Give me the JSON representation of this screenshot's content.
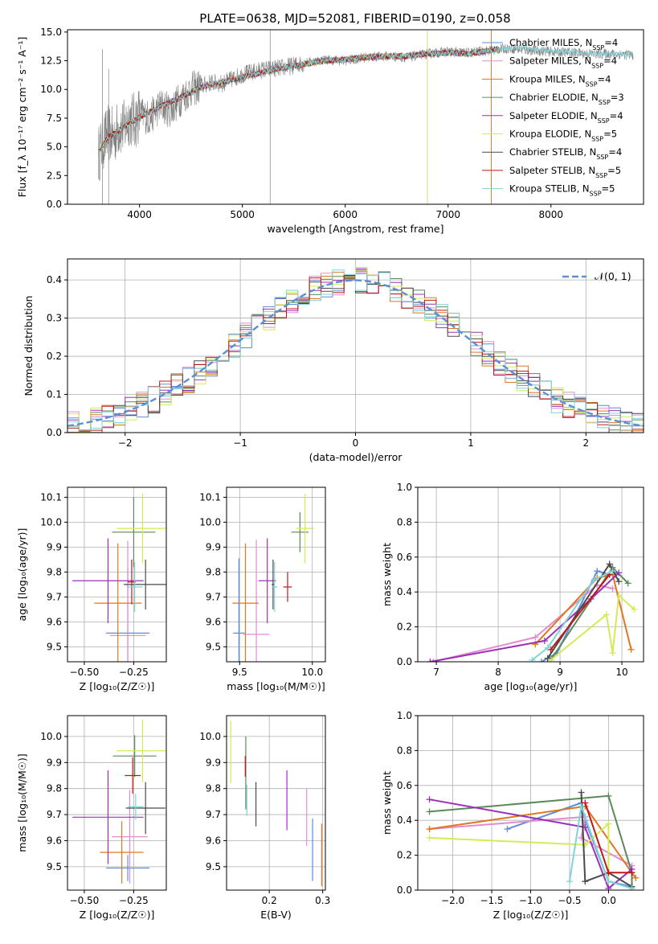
{
  "figure": {
    "title": "PLATE=0638, MJD=52081, FIBERID=0190, z=0.058"
  },
  "colors": {
    "Chabrier MILES": "#5b8fd6",
    "Salpeter MILES": "#e38bd0",
    "Kroupa MILES": "#e0761e",
    "Chabrier ELODIE": "#5a8a5a",
    "Salpeter ELODIE": "#9b30b8",
    "Kroupa ELODIE": "#d4ea58",
    "Chabrier STELIB": "#4a4a4a",
    "Salpeter STELIB": "#c01818",
    "Kroupa STELIB": "#7fd3da",
    "observed": "#808080",
    "normal": "#5b8fd6"
  },
  "chart_data": [
    {
      "id": "spectrum",
      "type": "line",
      "title": "PLATE=0638, MJD=52081, FIBERID=0190, z=0.058",
      "xlabel": "wavelength [Angstrom, rest frame]",
      "ylabel": "Flux [f_λ 10⁻¹⁷ erg cm⁻² s⁻¹ A⁻¹]",
      "xlim": [
        3300,
        8900
      ],
      "ylim": [
        0,
        15.2
      ],
      "xticks": [
        4000,
        5000,
        6000,
        7000,
        8000
      ],
      "yticks": [
        0.0,
        2.5,
        5.0,
        7.5,
        10.0,
        12.5,
        15.0
      ],
      "grid": false,
      "legend_position": "upper right",
      "legend": [
        {
          "name": "Chabrier MILES",
          "n": "4"
        },
        {
          "name": "Salpeter MILES",
          "n": "4"
        },
        {
          "name": "Kroupa MILES",
          "n": "4"
        },
        {
          "name": "Chabrier ELODIE",
          "n": "3"
        },
        {
          "name": "Salpeter ELODIE",
          "n": "4"
        },
        {
          "name": "Kroupa ELODIE",
          "n": "5"
        },
        {
          "name": "Chabrier STELIB",
          "n": "4"
        },
        {
          "name": "Salpeter STELIB",
          "n": "5"
        },
        {
          "name": "Kroupa STELIB",
          "n": "5"
        }
      ],
      "observed_series": {
        "x": [
          3600,
          3650,
          3700,
          3750,
          3800,
          3850,
          3900,
          3950,
          4000,
          4100,
          4200,
          4300,
          4400,
          4500,
          4600,
          4700,
          4800,
          4900,
          5000,
          5200,
          5400,
          5600,
          5800,
          6000,
          6200,
          6400,
          6600,
          6800,
          7000,
          7200,
          7400,
          7600,
          7800,
          8000,
          8200,
          8400,
          8600,
          8800
        ],
        "y": [
          4.3,
          5.5,
          6.2,
          5.8,
          6.8,
          6.6,
          7.6,
          7.2,
          7.9,
          7.5,
          8.6,
          8.2,
          9.2,
          10.0,
          10.3,
          10.6,
          10.5,
          10.9,
          11.3,
          11.7,
          11.9,
          12.3,
          12.6,
          12.5,
          12.8,
          12.9,
          12.8,
          13.1,
          13.3,
          13.2,
          13.4,
          13.6,
          13.4,
          13.3,
          13.2,
          13.1,
          13.1,
          13.0
        ]
      },
      "model_series": {
        "x": [
          3600,
          3700,
          3800,
          3900,
          4000,
          4200,
          4400,
          4600,
          4800,
          5000,
          5200,
          5400,
          5600,
          5800,
          6000,
          6200,
          6400,
          6600,
          6800,
          7000,
          7200,
          7400,
          7500
        ],
        "y": [
          4.5,
          5.9,
          6.4,
          7.0,
          7.6,
          8.5,
          9.3,
          10.2,
          10.6,
          11.1,
          11.5,
          11.9,
          12.2,
          12.5,
          12.6,
          12.8,
          12.9,
          12.9,
          13.1,
          13.2,
          13.1,
          13.4,
          13.5
        ]
      },
      "extended_model": {
        "name": "Kroupa STELIB",
        "x": [
          7500,
          7700,
          7900,
          8100,
          8300,
          8500,
          8700,
          8800
        ],
        "y": [
          13.5,
          13.7,
          13.4,
          13.3,
          13.2,
          13.1,
          13.1,
          13.0
        ]
      }
    },
    {
      "id": "residuals",
      "type": "line",
      "xlabel": "(data-model)/error",
      "ylabel": "Normed distribution",
      "xlim": [
        -2.5,
        2.5
      ],
      "ylim": [
        0,
        0.455
      ],
      "xticks": [
        -2,
        -1,
        0,
        1,
        2
      ],
      "yticks": [
        0.0,
        0.1,
        0.2,
        0.3,
        0.4
      ],
      "grid": true,
      "legend_position": "upper right",
      "legend": [
        {
          "name": "𝒩(0, 1)"
        }
      ],
      "normal_curve": {
        "mean": 0,
        "sigma": 1
      }
    },
    {
      "id": "age_vs_Z",
      "type": "scatter",
      "xlabel": "Z [log₁₀(Z/Z☉)]",
      "ylabel": "age  [log₁₀(age/yr)]",
      "xlim": [
        -0.585,
        -0.085
      ],
      "ylim": [
        9.44,
        10.14
      ],
      "xticks": [
        -0.5,
        -0.25
      ],
      "xticklabels": [
        "−0.50",
        "−0.25"
      ],
      "yticks": [
        9.5,
        9.6,
        9.7,
        9.8,
        9.9,
        10.0,
        10.1
      ],
      "grid": true,
      "points": [
        {
          "name": "Chabrier MILES",
          "x": -0.28,
          "xerr": 0.11,
          "y": 9.555,
          "yerr": 0.26
        },
        {
          "name": "Salpeter MILES",
          "x": -0.28,
          "xerr": 0.09,
          "y": 9.545,
          "yerr": 0.38
        },
        {
          "name": "Kroupa MILES",
          "x": -0.33,
          "xerr": 0.12,
          "y": 9.675,
          "yerr": 0.24
        },
        {
          "name": "Chabrier ELODIE",
          "x": -0.25,
          "xerr": 0.11,
          "y": 9.96,
          "yerr": 0.14
        },
        {
          "name": "Salpeter ELODIE",
          "x": -0.38,
          "xerr": 0.18,
          "y": 9.765,
          "yerr": 0.17
        },
        {
          "name": "Kroupa ELODIE",
          "x": -0.205,
          "xerr": 0.13,
          "y": 9.975,
          "yerr": 0.14
        },
        {
          "name": "Chabrier STELIB",
          "x": -0.19,
          "xerr": 0.11,
          "y": 9.75,
          "yerr": 0.1
        },
        {
          "name": "Salpeter STELIB",
          "x": -0.26,
          "xerr": 0.02,
          "y": 9.76,
          "yerr": 0.09
        },
        {
          "name": "Kroupa STELIB",
          "x": -0.245,
          "xerr": 0.04,
          "y": 9.74,
          "yerr": 0.1
        }
      ]
    },
    {
      "id": "age_vs_mass",
      "type": "scatter",
      "xlabel": "mass [log₁₀(M/M☉)]",
      "ylabel": "",
      "xlim": [
        9.41,
        10.09
      ],
      "ylim": [
        9.44,
        10.14
      ],
      "xticks": [
        9.5,
        10.0
      ],
      "yticks": [
        9.5,
        9.6,
        9.7,
        9.8,
        9.9,
        10.0,
        10.1
      ],
      "grid": true,
      "points": [
        {
          "name": "Chabrier MILES",
          "x": 9.495,
          "xerr": 0.04,
          "y": 9.555,
          "yerr": 0.3
        },
        {
          "name": "Salpeter MILES",
          "x": 9.615,
          "xerr": 0.09,
          "y": 9.55,
          "yerr": 0.38
        },
        {
          "name": "Kroupa MILES",
          "x": 9.54,
          "xerr": 0.09,
          "y": 9.675,
          "yerr": 0.24
        },
        {
          "name": "Chabrier ELODIE",
          "x": 9.915,
          "xerr": 0.06,
          "y": 9.96,
          "yerr": 0.08
        },
        {
          "name": "Salpeter ELODIE",
          "x": 9.69,
          "xerr": 0.06,
          "y": 9.765,
          "yerr": 0.17
        },
        {
          "name": "Kroupa ELODIE",
          "x": 9.95,
          "xerr": 0.06,
          "y": 9.975,
          "yerr": 0.14
        },
        {
          "name": "Chabrier STELIB",
          "x": 9.73,
          "xerr": 0.01,
          "y": 9.75,
          "yerr": 0.1
        },
        {
          "name": "Salpeter STELIB",
          "x": 9.83,
          "xerr": 0.03,
          "y": 9.74,
          "yerr": 0.06
        },
        {
          "name": "Kroupa STELIB",
          "x": 9.74,
          "xerr": 0.02,
          "y": 9.74,
          "yerr": 0.1
        }
      ]
    },
    {
      "id": "weight_vs_age",
      "type": "line",
      "xlabel": "age  [log₁₀(age/yr)]",
      "ylabel": "mass weight",
      "xlim": [
        6.7,
        10.35
      ],
      "ylim": [
        0,
        1.0
      ],
      "xticks": [
        7,
        8,
        9,
        10
      ],
      "yticks": [
        0.0,
        0.2,
        0.4,
        0.6,
        0.8,
        1.0
      ],
      "grid": true,
      "series": [
        {
          "name": "Chabrier MILES",
          "x": [
            8.7,
            8.95,
            9.6,
            9.8,
            9.9
          ],
          "y": [
            0.0,
            0.05,
            0.52,
            0.5,
            0.5
          ]
        },
        {
          "name": "Salpeter MILES",
          "x": [
            6.95,
            8.6,
            9.6,
            9.85
          ],
          "y": [
            0.0,
            0.14,
            0.44,
            0.42
          ]
        },
        {
          "name": "Kroupa MILES",
          "x": [
            8.6,
            9.6,
            9.85,
            10.15
          ],
          "y": [
            0.1,
            0.48,
            0.5,
            0.07
          ]
        },
        {
          "name": "Chabrier ELODIE",
          "x": [
            8.85,
            9.85,
            10.1
          ],
          "y": [
            0.01,
            0.54,
            0.45
          ]
        },
        {
          "name": "Salpeter ELODIE",
          "x": [
            6.9,
            8.75,
            9.5,
            9.95
          ],
          "y": [
            0.0,
            0.12,
            0.36,
            0.51
          ]
        },
        {
          "name": "Kroupa ELODIE",
          "x": [
            8.85,
            9.75,
            9.85,
            9.95,
            10.2
          ],
          "y": [
            0.01,
            0.27,
            0.05,
            0.38,
            0.3
          ]
        },
        {
          "name": "Chabrier STELIB",
          "x": [
            8.8,
            9.8,
            9.95
          ],
          "y": [
            0.02,
            0.56,
            0.46
          ]
        },
        {
          "name": "Salpeter STELIB",
          "x": [
            8.85,
            9.8
          ],
          "y": [
            0.07,
            0.5
          ]
        },
        {
          "name": "Kroupa STELIB",
          "x": [
            8.55,
            8.8,
            9.55,
            9.85
          ],
          "y": [
            0.01,
            0.08,
            0.47,
            0.52
          ]
        }
      ]
    },
    {
      "id": "mass_vs_Z",
      "type": "scatter",
      "xlabel": "Z [log₁₀(Z/Z☉)]",
      "ylabel": "mass [log₁₀(M/M☉)]",
      "xlim": [
        -0.585,
        -0.085
      ],
      "ylim": [
        9.41,
        10.08
      ],
      "xticks": [
        -0.5,
        -0.25
      ],
      "xticklabels": [
        "−0.50",
        "−0.25"
      ],
      "yticks": [
        9.5,
        9.6,
        9.7,
        9.8,
        9.9,
        10.0
      ],
      "grid": true,
      "points": [
        {
          "name": "Chabrier MILES",
          "x": -0.28,
          "xerr": 0.11,
          "y": 9.495,
          "yerr": 0.05
        },
        {
          "name": "Salpeter MILES",
          "x": -0.27,
          "xerr": 0.09,
          "y": 9.615,
          "yerr": 0.18
        },
        {
          "name": "Kroupa MILES",
          "x": -0.31,
          "xerr": 0.11,
          "y": 9.555,
          "yerr": 0.12
        },
        {
          "name": "Chabrier ELODIE",
          "x": -0.245,
          "xerr": 0.11,
          "y": 9.925,
          "yerr": 0.08
        },
        {
          "name": "Salpeter ELODIE",
          "x": -0.38,
          "xerr": 0.18,
          "y": 9.69,
          "yerr": 0.18
        },
        {
          "name": "Kroupa ELODIE",
          "x": -0.205,
          "xerr": 0.13,
          "y": 9.945,
          "yerr": 0.12
        },
        {
          "name": "Chabrier STELIB",
          "x": -0.19,
          "xerr": 0.1,
          "y": 9.725,
          "yerr": 0.1
        },
        {
          "name": "Salpeter STELIB",
          "x": -0.255,
          "xerr": 0.04,
          "y": 9.85,
          "yerr": 0.07
        },
        {
          "name": "Kroupa STELIB",
          "x": -0.24,
          "xerr": 0.04,
          "y": 9.73,
          "yerr": 0.05
        }
      ]
    },
    {
      "id": "mass_vs_ebv",
      "type": "scatter",
      "xlabel": "E(B-V)",
      "ylabel": "",
      "xlim": [
        0.12,
        0.305
      ],
      "ylim": [
        9.41,
        10.08
      ],
      "xticks": [
        0.2,
        0.3
      ],
      "yticks": [
        9.5,
        9.6,
        9.7,
        9.8,
        9.9,
        10.0
      ],
      "grid": true,
      "points": [
        {
          "name": "Chabrier MILES",
          "x": 0.281,
          "xerr": 0,
          "y": 9.565,
          "yerr": 0.12
        },
        {
          "name": "Salpeter MILES",
          "x": 0.27,
          "xerr": 0,
          "y": 9.69,
          "yerr": 0.11
        },
        {
          "name": "Kroupa MILES",
          "x": 0.298,
          "xerr": 0,
          "y": 9.545,
          "yerr": 0.12
        },
        {
          "name": "Chabrier ELODIE",
          "x": 0.156,
          "xerr": 0,
          "y": 9.86,
          "yerr": 0.14
        },
        {
          "name": "Salpeter ELODIE",
          "x": 0.233,
          "xerr": 0,
          "y": 9.755,
          "yerr": 0.115
        },
        {
          "name": "Kroupa ELODIE",
          "x": 0.128,
          "xerr": 0,
          "y": 9.94,
          "yerr": 0.12
        },
        {
          "name": "Chabrier STELIB",
          "x": 0.175,
          "xerr": 0,
          "y": 9.74,
          "yerr": 0.085
        },
        {
          "name": "Salpeter STELIB",
          "x": 0.155,
          "xerr": 0,
          "y": 9.885,
          "yerr": 0.04
        },
        {
          "name": "Kroupa STELIB",
          "x": 0.158,
          "xerr": 0,
          "y": 9.755,
          "yerr": 0.06
        }
      ]
    },
    {
      "id": "weight_vs_Z",
      "type": "line",
      "xlabel": "Z [log₁₀(Z/Z☉)]",
      "ylabel": "mass weight",
      "xlim": [
        -2.45,
        0.45
      ],
      "ylim": [
        0,
        1.0
      ],
      "xticks": [
        -2.0,
        -1.5,
        -1.0,
        -0.5,
        0.0
      ],
      "xticklabels": [
        "−2.0",
        "−1.5",
        "−1.0",
        "−0.5",
        "0.0"
      ],
      "yticks": [
        0.0,
        0.2,
        0.4,
        0.6,
        0.8,
        1.0
      ],
      "grid": true,
      "series": [
        {
          "name": "Chabrier MILES",
          "x": [
            -1.3,
            -0.35,
            -0.3,
            0.0,
            0.3
          ],
          "y": [
            0.35,
            0.5,
            0.4,
            0.05,
            0.02
          ]
        },
        {
          "name": "Salpeter MILES",
          "x": [
            -2.3,
            -0.3,
            -0.35,
            0.3
          ],
          "y": [
            0.35,
            0.42,
            0.3,
            0.14
          ]
        },
        {
          "name": "Kroupa MILES",
          "x": [
            -2.3,
            -0.3,
            0.3,
            0.35
          ],
          "y": [
            0.35,
            0.48,
            0.1,
            0.07
          ]
        },
        {
          "name": "Chabrier ELODIE",
          "x": [
            -2.3,
            -0.0,
            0.3,
            0.3
          ],
          "y": [
            0.45,
            0.54,
            0.1,
            0.01
          ]
        },
        {
          "name": "Salpeter ELODIE",
          "x": [
            -2.3,
            -0.3,
            -0.3,
            0.0,
            0.3
          ],
          "y": [
            0.52,
            0.36,
            0.36,
            0.01,
            0.12
          ]
        },
        {
          "name": "Kroupa ELODIE",
          "x": [
            -2.3,
            -0.3,
            0.0,
            -0.0
          ],
          "y": [
            0.3,
            0.26,
            0.38,
            0.05
          ]
        },
        {
          "name": "Chabrier STELIB",
          "x": [
            -0.35,
            -0.3,
            0.0,
            0.3
          ],
          "y": [
            0.56,
            0.05,
            0.1,
            0.02
          ]
        },
        {
          "name": "Salpeter STELIB",
          "x": [
            -0.3,
            0.0,
            0.3
          ],
          "y": [
            0.5,
            0.1,
            0.1
          ]
        },
        {
          "name": "Kroupa STELIB",
          "x": [
            -0.5,
            -0.35,
            0.0,
            0.3
          ],
          "y": [
            0.05,
            0.48,
            0.05,
            0.01
          ]
        }
      ]
    }
  ]
}
